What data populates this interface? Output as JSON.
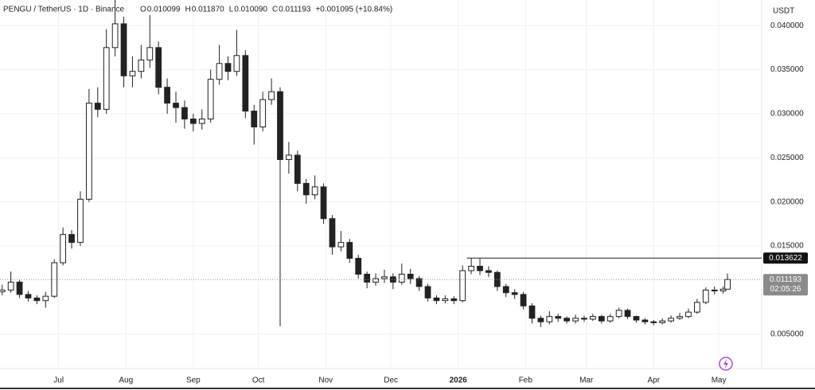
{
  "chart_data": {
    "type": "candlestick",
    "title": "PENGU / TetherUS · 1D · Binance",
    "ohlc_header": [
      {
        "key": "O",
        "text": "0.010099"
      },
      {
        "key": "H",
        "text": "0.011870"
      },
      {
        "key": "L",
        "text": "0.010090"
      },
      {
        "key": "C",
        "text": "0.011193"
      }
    ],
    "change_text": "+0.001095 (+10.84%)",
    "y_axis_unit": "USDT",
    "x": [
      1,
      5,
      9,
      13,
      17,
      21,
      25,
      29,
      33,
      37,
      41,
      45,
      49,
      53,
      57,
      61,
      65,
      69,
      73,
      77,
      81,
      85,
      89,
      93,
      97,
      101,
      105,
      109,
      113,
      117,
      121,
      125,
      129,
      133,
      137,
      141,
      145,
      149,
      153,
      157,
      161,
      165,
      169,
      173,
      177,
      181,
      185,
      189,
      193,
      197,
      201,
      205,
      209,
      213,
      217,
      221,
      225,
      229,
      233,
      237,
      241,
      245,
      249,
      253,
      257,
      261,
      265,
      269,
      273,
      277,
      281,
      285,
      289,
      293,
      297,
      301,
      305,
      309,
      313,
      317,
      321,
      325,
      329,
      333,
      335
    ],
    "open": [
      0.0098,
      0.01,
      0.0109,
      0.0095,
      0.0091,
      0.0088,
      0.0093,
      0.0131,
      0.0163,
      0.0154,
      0.0203,
      0.0312,
      0.0305,
      0.0375,
      0.0402,
      0.0343,
      0.0348,
      0.0361,
      0.0375,
      0.033,
      0.0312,
      0.0307,
      0.0294,
      0.0289,
      0.0294,
      0.0339,
      0.0357,
      0.0348,
      0.0366,
      0.0303,
      0.0285,
      0.0316,
      0.0325,
      0.0248,
      0.0253,
      0.0221,
      0.0208,
      0.0217,
      0.0181,
      0.0149,
      0.0154,
      0.0136,
      0.0118,
      0.0109,
      0.0113,
      0.0115,
      0.0109,
      0.0118,
      0.0113,
      0.0104,
      0.0091,
      0.0088,
      0.009,
      0.0088,
      0.0122,
      0.0127,
      0.0122,
      0.012,
      0.0104,
      0.0097,
      0.0095,
      0.0082,
      0.0068,
      0.0064,
      0.007,
      0.0068,
      0.0065,
      0.0068,
      0.0067,
      0.007,
      0.0065,
      0.007,
      0.0077,
      0.007,
      0.0066,
      0.0064,
      0.0063,
      0.0065,
      0.0068,
      0.007,
      0.0075,
      0.0086,
      0.01,
      0.0099,
      0.010099
    ],
    "high": [
      0.0106,
      0.0121,
      0.0112,
      0.0099,
      0.0094,
      0.0098,
      0.0135,
      0.0171,
      0.0168,
      0.0212,
      0.0328,
      0.033,
      0.0396,
      0.0429,
      0.041,
      0.0365,
      0.0378,
      0.0412,
      0.0382,
      0.034,
      0.0325,
      0.0315,
      0.03,
      0.0305,
      0.035,
      0.0378,
      0.0365,
      0.0395,
      0.0372,
      0.031,
      0.0325,
      0.034,
      0.033,
      0.0268,
      0.0258,
      0.0226,
      0.023,
      0.0221,
      0.0185,
      0.0167,
      0.0158,
      0.014,
      0.0121,
      0.0119,
      0.0123,
      0.0119,
      0.013,
      0.0124,
      0.0116,
      0.0107,
      0.0094,
      0.0094,
      0.0093,
      0.0128,
      0.0136,
      0.0136,
      0.0127,
      0.0122,
      0.0107,
      0.0101,
      0.0098,
      0.0085,
      0.0071,
      0.0076,
      0.0073,
      0.007,
      0.0072,
      0.0071,
      0.0073,
      0.0072,
      0.0073,
      0.008,
      0.0079,
      0.0071,
      0.0068,
      0.0066,
      0.0068,
      0.0071,
      0.0074,
      0.0079,
      0.009,
      0.0103,
      0.0104,
      0.0104,
      0.01187
    ],
    "low": [
      0.0094,
      0.0097,
      0.0091,
      0.0087,
      0.0084,
      0.008,
      0.0091,
      0.0128,
      0.0147,
      0.015,
      0.02,
      0.0296,
      0.03,
      0.0365,
      0.033,
      0.033,
      0.034,
      0.0352,
      0.0322,
      0.03,
      0.029,
      0.0283,
      0.028,
      0.0282,
      0.029,
      0.0333,
      0.0338,
      0.0343,
      0.0295,
      0.0265,
      0.028,
      0.031,
      0.0059,
      0.0232,
      0.0212,
      0.0198,
      0.0203,
      0.0175,
      0.014,
      0.0144,
      0.0131,
      0.0113,
      0.0102,
      0.0105,
      0.0108,
      0.0101,
      0.0106,
      0.0107,
      0.0099,
      0.0087,
      0.0084,
      0.0085,
      0.0084,
      0.0086,
      0.0118,
      0.0117,
      0.0115,
      0.0099,
      0.0092,
      0.009,
      0.0078,
      0.0062,
      0.0058,
      0.0061,
      0.0064,
      0.0062,
      0.0062,
      0.0064,
      0.0065,
      0.0062,
      0.0063,
      0.0068,
      0.0067,
      0.0063,
      0.0061,
      0.006,
      0.0061,
      0.0063,
      0.0066,
      0.0068,
      0.0073,
      0.0084,
      0.0095,
      0.0096,
      0.01009
    ],
    "close": [
      0.01,
      0.0109,
      0.0095,
      0.0091,
      0.0088,
      0.0093,
      0.0131,
      0.0163,
      0.0154,
      0.0203,
      0.0312,
      0.0305,
      0.0375,
      0.0402,
      0.0343,
      0.0348,
      0.0361,
      0.0375,
      0.033,
      0.0312,
      0.0307,
      0.0294,
      0.0289,
      0.0294,
      0.0339,
      0.0357,
      0.0348,
      0.0366,
      0.0303,
      0.0285,
      0.0316,
      0.0325,
      0.0248,
      0.0253,
      0.0221,
      0.0208,
      0.0217,
      0.0181,
      0.0149,
      0.0154,
      0.0136,
      0.0118,
      0.0109,
      0.0113,
      0.0115,
      0.0109,
      0.0118,
      0.0113,
      0.0104,
      0.0091,
      0.0088,
      0.009,
      0.0088,
      0.0122,
      0.0127,
      0.0122,
      0.012,
      0.0104,
      0.0097,
      0.0095,
      0.0082,
      0.0068,
      0.0064,
      0.007,
      0.0068,
      0.0065,
      0.0068,
      0.0067,
      0.007,
      0.0065,
      0.007,
      0.0077,
      0.007,
      0.0066,
      0.0064,
      0.0063,
      0.0065,
      0.0068,
      0.007,
      0.0075,
      0.0086,
      0.01,
      0.0099,
      0.0101,
      0.011193
    ],
    "up_color": "#ffffff",
    "down_color": "#222222",
    "wick_color": "#222222",
    "xlim": [
      0,
      350
    ],
    "xticks": [
      {
        "value": 27,
        "label": "Jul"
      },
      {
        "value": 58,
        "label": "Aug"
      },
      {
        "value": 89,
        "label": "Sep"
      },
      {
        "value": 119,
        "label": "Oct"
      },
      {
        "value": 150,
        "label": "Nov"
      },
      {
        "value": 180,
        "label": "Dec"
      },
      {
        "value": 211,
        "label": "2026"
      },
      {
        "value": 242,
        "label": "Feb"
      },
      {
        "value": 270,
        "label": "Mar"
      },
      {
        "value": 301,
        "label": "Apr"
      },
      {
        "value": 331,
        "label": "May"
      }
    ],
    "ylim": [
      0.0011,
      0.0429
    ],
    "yticks": [
      {
        "value": 0.005,
        "label": "0.005000"
      },
      {
        "value": 0.015,
        "label": "0.015000"
      },
      {
        "value": 0.02,
        "label": "0.020000"
      },
      {
        "value": 0.025,
        "label": "0.025000"
      },
      {
        "value": 0.03,
        "label": "0.030000"
      },
      {
        "value": 0.035,
        "label": "0.035000"
      },
      {
        "value": 0.04,
        "label": "0.040000"
      }
    ],
    "grid": true,
    "horizontal_line": {
      "value": 0.013622,
      "label": "0.013622",
      "start_x": 215
    },
    "current_price": {
      "value": 0.011193,
      "label": "0.011193",
      "countdown": "02:05:26"
    }
  }
}
